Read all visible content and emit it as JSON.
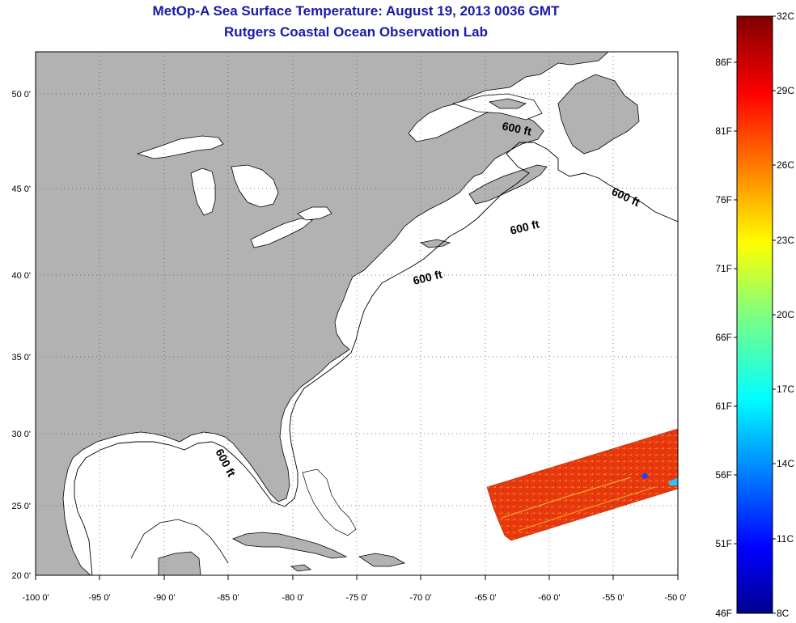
{
  "title_line1": "MetOp-A Sea Surface Temperature:  August 19, 2013 0036 GMT",
  "title_line2": "Rutgers Coastal Ocean Observation Lab",
  "map": {
    "lon_range": [
      -100,
      -50
    ],
    "lat_range": [
      20,
      52.5
    ],
    "x_ticks": [
      "-100 0'",
      "-95 0'",
      "-90 0'",
      "-85 0'",
      "-80 0'",
      "-75 0'",
      "-70 0'",
      "-65 0'",
      "-60 0'",
      "-55 0'",
      "-50 0'"
    ],
    "y_ticks": [
      "20 0'",
      "25 0'",
      "30 0'",
      "35 0'",
      "40 0'",
      "45 0'",
      "50 0'"
    ],
    "contour_labels": [
      "600 ft",
      "600 ft",
      "600 ft",
      "600 ft",
      "600 ft"
    ],
    "land_color": "#b2b2b2",
    "grid": "dotted"
  },
  "colorbar": {
    "celsius_labels": [
      "32C",
      "29C",
      "26C",
      "23C",
      "20C",
      "17C",
      "14C",
      "11C",
      "8C"
    ],
    "fahrenheit_labels": [
      "86F",
      "81F",
      "76F",
      "71F",
      "66F",
      "61F",
      "56F",
      "51F",
      "46F"
    ],
    "range_c": [
      8,
      32
    ]
  }
}
